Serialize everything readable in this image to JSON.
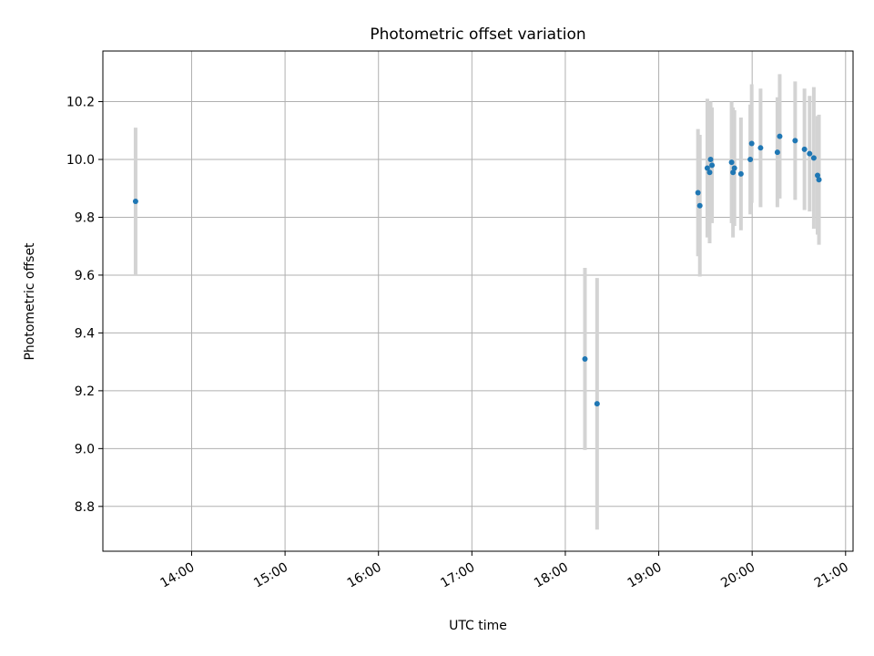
{
  "chart_data": {
    "type": "scatter",
    "title": "Photometric offset variation",
    "xlabel": "UTC time",
    "ylabel": "Photometric offset",
    "xlim": [
      13.05,
      21.08
    ],
    "ylim": [
      8.645,
      10.375
    ],
    "x_ticks": [
      {
        "value": 14,
        "label": "14:00"
      },
      {
        "value": 15,
        "label": "15:00"
      },
      {
        "value": 16,
        "label": "16:00"
      },
      {
        "value": 17,
        "label": "17:00"
      },
      {
        "value": 18,
        "label": "18:00"
      },
      {
        "value": 19,
        "label": "19:00"
      },
      {
        "value": 20,
        "label": "20:00"
      },
      {
        "value": 21,
        "label": "21:00"
      }
    ],
    "y_ticks": [
      {
        "value": 8.8,
        "label": "8.8"
      },
      {
        "value": 9.0,
        "label": "9.0"
      },
      {
        "value": 9.2,
        "label": "9.2"
      },
      {
        "value": 9.4,
        "label": "9.4"
      },
      {
        "value": 9.6,
        "label": "9.6"
      },
      {
        "value": 9.8,
        "label": "9.8"
      },
      {
        "value": 10.0,
        "label": "10.0"
      },
      {
        "value": 10.2,
        "label": "10.2"
      }
    ],
    "grid": true,
    "point_color": "#1f77b4",
    "errorbar_color": "#d3d3d3",
    "series": [
      {
        "name": "offset",
        "points": [
          {
            "x": 13.4,
            "y": 9.855,
            "err": 0.255
          },
          {
            "x": 18.21,
            "y": 9.31,
            "err": 0.315
          },
          {
            "x": 18.34,
            "y": 9.155,
            "err": 0.435
          },
          {
            "x": 19.42,
            "y": 9.885,
            "err": 0.22
          },
          {
            "x": 19.44,
            "y": 9.84,
            "err": 0.245
          },
          {
            "x": 19.52,
            "y": 9.97,
            "err": 0.24
          },
          {
            "x": 19.545,
            "y": 9.955,
            "err": 0.245
          },
          {
            "x": 19.555,
            "y": 10.0,
            "err": 0.2
          },
          {
            "x": 19.57,
            "y": 9.98,
            "err": 0.2
          },
          {
            "x": 19.78,
            "y": 9.99,
            "err": 0.21
          },
          {
            "x": 19.795,
            "y": 9.955,
            "err": 0.225
          },
          {
            "x": 19.81,
            "y": 9.97,
            "err": 0.2
          },
          {
            "x": 19.88,
            "y": 9.95,
            "err": 0.195
          },
          {
            "x": 19.98,
            "y": 10.0,
            "err": 0.19
          },
          {
            "x": 19.995,
            "y": 10.055,
            "err": 0.205
          },
          {
            "x": 20.09,
            "y": 10.04,
            "err": 0.205
          },
          {
            "x": 20.27,
            "y": 10.025,
            "err": 0.19
          },
          {
            "x": 20.295,
            "y": 10.08,
            "err": 0.215
          },
          {
            "x": 20.46,
            "y": 10.065,
            "err": 0.205
          },
          {
            "x": 20.56,
            "y": 10.035,
            "err": 0.21
          },
          {
            "x": 20.615,
            "y": 10.02,
            "err": 0.2
          },
          {
            "x": 20.66,
            "y": 10.005,
            "err": 0.245
          },
          {
            "x": 20.7,
            "y": 9.945,
            "err": 0.205
          },
          {
            "x": 20.715,
            "y": 9.93,
            "err": 0.225
          }
        ]
      }
    ]
  }
}
